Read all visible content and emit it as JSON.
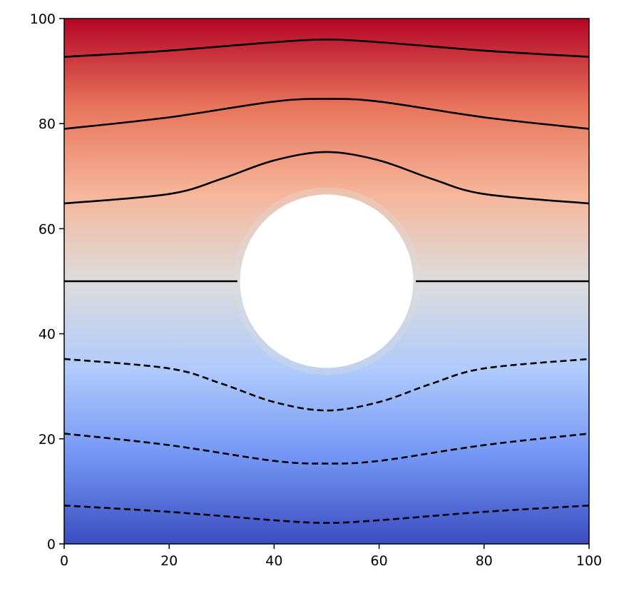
{
  "chart_data": {
    "type": "heatmap",
    "title": "",
    "xlabel": "",
    "ylabel": "",
    "xlim": [
      0,
      100
    ],
    "ylim": [
      0,
      100
    ],
    "x_ticks": [
      0,
      20,
      40,
      60,
      80,
      100
    ],
    "y_ticks": [
      0,
      20,
      40,
      60,
      80,
      100
    ],
    "x_tick_labels": [
      "0",
      "20",
      "40",
      "60",
      "80",
      "100"
    ],
    "y_tick_labels": [
      "0",
      "20",
      "40",
      "60",
      "80",
      "100"
    ],
    "grid": false,
    "colormap": "coolwarm",
    "colormap_stops": [
      "#3b4cc0",
      "#7396f5",
      "#b0cbfc",
      "#dddcdc",
      "#f6b69a",
      "#e7745b",
      "#b40426"
    ],
    "value_range": [
      0,
      100
    ],
    "obstacle": {
      "shape": "circle",
      "center": [
        50,
        50
      ],
      "radius": 16.5,
      "fill": "#ffffff"
    },
    "contour_color": "#000000",
    "contours": [
      {
        "style": "dashed",
        "points": [
          [
            0,
            7.3
          ],
          [
            20,
            6.1
          ],
          [
            40,
            4.5
          ],
          [
            50,
            4.0
          ],
          [
            60,
            4.5
          ],
          [
            80,
            6.1
          ],
          [
            100,
            7.3
          ]
        ]
      },
      {
        "style": "dashed",
        "points": [
          [
            0,
            21.0
          ],
          [
            20,
            18.8
          ],
          [
            40,
            15.8
          ],
          [
            50,
            15.3
          ],
          [
            60,
            15.8
          ],
          [
            80,
            18.8
          ],
          [
            100,
            21.0
          ]
        ]
      },
      {
        "style": "dashed",
        "points": [
          [
            0,
            35.2
          ],
          [
            20,
            33.4
          ],
          [
            30,
            30.5
          ],
          [
            40,
            27.0
          ],
          [
            50,
            25.4
          ],
          [
            60,
            27.0
          ],
          [
            70,
            30.5
          ],
          [
            80,
            33.4
          ],
          [
            100,
            35.2
          ]
        ]
      },
      {
        "style": "solid",
        "points": [
          [
            0,
            50
          ],
          [
            33,
            50
          ]
        ]
      },
      {
        "style": "solid",
        "points": [
          [
            67,
            50
          ],
          [
            100,
            50
          ]
        ]
      },
      {
        "style": "solid",
        "points": [
          [
            0,
            64.8
          ],
          [
            20,
            66.6
          ],
          [
            30,
            69.5
          ],
          [
            40,
            73.0
          ],
          [
            50,
            74.6
          ],
          [
            60,
            73.0
          ],
          [
            70,
            69.5
          ],
          [
            80,
            66.6
          ],
          [
            100,
            64.8
          ]
        ]
      },
      {
        "style": "solid",
        "points": [
          [
            0,
            79.0
          ],
          [
            20,
            81.2
          ],
          [
            40,
            84.2
          ],
          [
            50,
            84.7
          ],
          [
            60,
            84.2
          ],
          [
            80,
            81.2
          ],
          [
            100,
            79.0
          ]
        ]
      },
      {
        "style": "solid",
        "points": [
          [
            0,
            92.7
          ],
          [
            20,
            93.9
          ],
          [
            40,
            95.5
          ],
          [
            50,
            96.0
          ],
          [
            60,
            95.5
          ],
          [
            80,
            93.9
          ],
          [
            100,
            92.7
          ]
        ]
      }
    ]
  }
}
